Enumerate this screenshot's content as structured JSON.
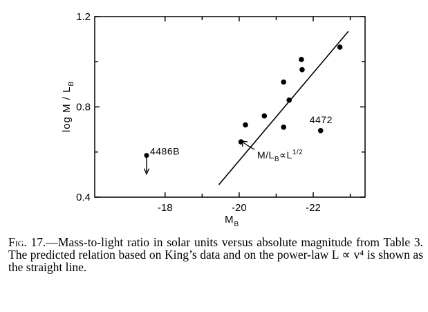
{
  "chart_data": {
    "type": "scatter",
    "title": "",
    "xlabel_main": "M",
    "xlabel_sub": "B",
    "ylabel": "log  M / L",
    "ylabel_sub": "B",
    "xlim": [
      -16.1,
      -23.4
    ],
    "ylim": [
      0.4,
      1.2
    ],
    "x_ticks": [
      -18,
      -20,
      -22
    ],
    "x_tick_labels": [
      "-18",
      "-20",
      "-22"
    ],
    "y_ticks": [
      0.4,
      0.8,
      1.2
    ],
    "y_tick_labels": [
      "0.4",
      "0.8",
      "1.2"
    ],
    "grid": false,
    "points": [
      {
        "x": -20.05,
        "y": 0.645
      },
      {
        "x": -20.17,
        "y": 0.72
      },
      {
        "x": -20.68,
        "y": 0.76
      },
      {
        "x": -21.2,
        "y": 0.71
      },
      {
        "x": -21.2,
        "y": 0.91
      },
      {
        "x": -21.35,
        "y": 0.83
      },
      {
        "x": -21.68,
        "y": 1.01
      },
      {
        "x": -21.7,
        "y": 0.965
      },
      {
        "x": -22.2,
        "y": 0.695
      },
      {
        "x": -22.72,
        "y": 1.065
      }
    ],
    "upper_limit_point": {
      "x": -17.5,
      "y": 0.585,
      "label": "4486B"
    },
    "point_label": {
      "x": -22.2,
      "y": 0.695,
      "text": "4472"
    },
    "fit_line": {
      "x": [
        -19.45,
        -22.95
      ],
      "y": [
        0.455,
        1.135
      ]
    },
    "line_label": {
      "text_main": "M/L",
      "text_sub": "B",
      "text_prop": "∝L",
      "text_exp": "1/2"
    }
  },
  "caption": {
    "prefix": "Fig. 17.",
    "text": "—Mass-to-light ratio in solar units versus absolute magnitude from Table 3. The predicted relation based on King’s data and on the power-law L ∝ v⁴ is shown as the straight line."
  }
}
